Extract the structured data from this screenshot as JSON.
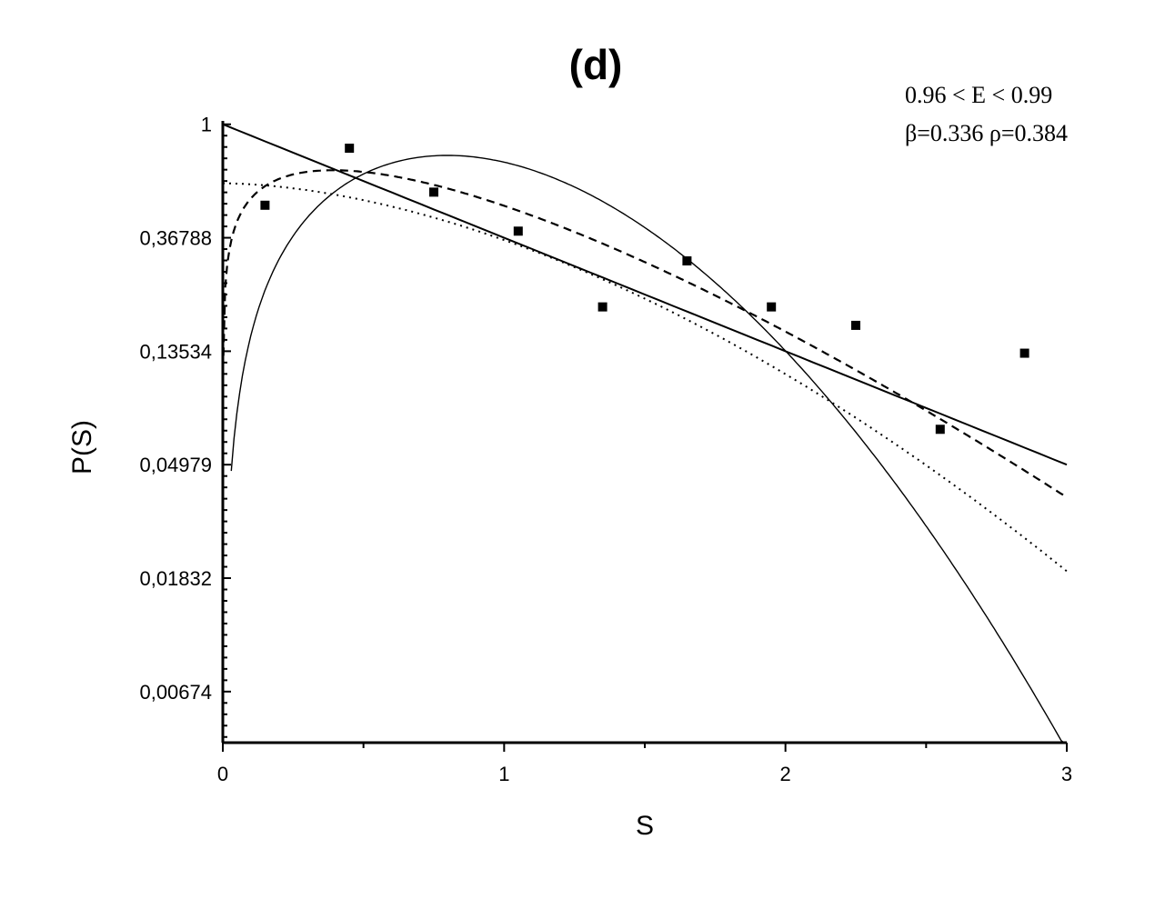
{
  "chart_data": {
    "type": "scatter",
    "title": "(d)",
    "xlabel": "S",
    "ylabel": "P(S)",
    "xlim": [
      0,
      3
    ],
    "ylim_ln": [
      -5.45,
      0.03
    ],
    "y_scale": "log-e",
    "x_ticks": [
      "0",
      "1",
      "2",
      "3"
    ],
    "y_ticks": [
      "1",
      "0,36788",
      "0,13534",
      "0,04979",
      "0,01832",
      "0,00674"
    ],
    "annotations": [
      "0.96 < E < 0.99",
      "β=0.336 ρ=0.384"
    ],
    "points": {
      "s": [
        0.15,
        0.45,
        0.75,
        1.05,
        1.35,
        1.65,
        1.95,
        2.25,
        2.55,
        2.85
      ],
      "p": [
        0.49,
        0.81,
        0.55,
        0.39,
        0.2,
        0.3,
        0.2,
        0.17,
        0.068,
        0.133
      ]
    },
    "grid": false,
    "legend": "none"
  }
}
